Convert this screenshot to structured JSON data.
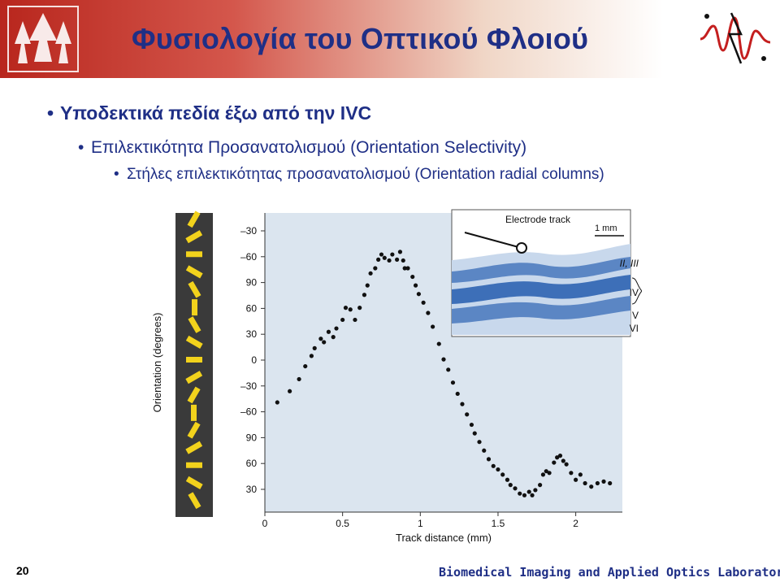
{
  "header": {
    "title": "Φυσιολογία του Οπτικού Φλοιού"
  },
  "bullets": {
    "level1": "Υποδεκτικά πεδία έξω από την IVC",
    "level2": "Επιλεκτικότητα Προσανατολισμού (Orientation Selectivity)",
    "level3": "Στήλες επιλεκτικότητας προσανατολισμού (Orientation radial columns)"
  },
  "chart_data": {
    "type": "scatter",
    "xlabel": "Track distance (mm)",
    "ylabel": "Orientation (degrees)",
    "x_ticks": [
      "0",
      "0.5",
      "1",
      "1.5",
      "2"
    ],
    "y_ticks": [
      "–30",
      "–60",
      "90",
      "60",
      "30",
      "0",
      "–30",
      "–60",
      "90",
      "60",
      "30"
    ],
    "xlim": [
      0,
      2.3
    ],
    "inset": {
      "title": "Electrode track",
      "scale_label": "1 mm",
      "layer_labels": [
        "II, III",
        "IV",
        "V",
        "VI"
      ]
    },
    "points": [
      {
        "x": 0.08,
        "y": 180
      },
      {
        "x": 0.16,
        "y": 193
      },
      {
        "x": 0.22,
        "y": 207
      },
      {
        "x": 0.26,
        "y": 222
      },
      {
        "x": 0.3,
        "y": 234
      },
      {
        "x": 0.32,
        "y": 243
      },
      {
        "x": 0.36,
        "y": 254
      },
      {
        "x": 0.38,
        "y": 250
      },
      {
        "x": 0.41,
        "y": 262
      },
      {
        "x": 0.44,
        "y": 256
      },
      {
        "x": 0.46,
        "y": 266
      },
      {
        "x": 0.5,
        "y": 276
      },
      {
        "x": 0.52,
        "y": 290
      },
      {
        "x": 0.55,
        "y": 288
      },
      {
        "x": 0.58,
        "y": 276
      },
      {
        "x": 0.61,
        "y": 290
      },
      {
        "x": 0.64,
        "y": 305
      },
      {
        "x": 0.66,
        "y": 316
      },
      {
        "x": 0.68,
        "y": 330
      },
      {
        "x": 0.71,
        "y": 336
      },
      {
        "x": 0.73,
        "y": 346
      },
      {
        "x": 0.75,
        "y": 352
      },
      {
        "x": 0.77,
        "y": 348
      },
      {
        "x": 0.8,
        "y": 345
      },
      {
        "x": 0.82,
        "y": 352
      },
      {
        "x": 0.85,
        "y": 346
      },
      {
        "x": 0.87,
        "y": 355
      },
      {
        "x": 0.89,
        "y": 345
      },
      {
        "x": 0.9,
        "y": 336
      },
      {
        "x": 0.92,
        "y": 336
      },
      {
        "x": 0.95,
        "y": 326
      },
      {
        "x": 0.97,
        "y": 316
      },
      {
        "x": 0.99,
        "y": 306
      },
      {
        "x": 1.02,
        "y": 296
      },
      {
        "x": 1.05,
        "y": 284
      },
      {
        "x": 1.08,
        "y": 268
      },
      {
        "x": 1.12,
        "y": 248
      },
      {
        "x": 1.15,
        "y": 230
      },
      {
        "x": 1.18,
        "y": 218
      },
      {
        "x": 1.21,
        "y": 203
      },
      {
        "x": 1.24,
        "y": 190
      },
      {
        "x": 1.27,
        "y": 178
      },
      {
        "x": 1.3,
        "y": 166
      },
      {
        "x": 1.33,
        "y": 154
      },
      {
        "x": 1.35,
        "y": 144
      },
      {
        "x": 1.38,
        "y": 134
      },
      {
        "x": 1.41,
        "y": 124
      },
      {
        "x": 1.44,
        "y": 114
      },
      {
        "x": 1.47,
        "y": 106
      },
      {
        "x": 1.5,
        "y": 102
      },
      {
        "x": 1.53,
        "y": 96
      },
      {
        "x": 1.56,
        "y": 90
      },
      {
        "x": 1.58,
        "y": 84
      },
      {
        "x": 1.61,
        "y": 80
      },
      {
        "x": 1.64,
        "y": 74
      },
      {
        "x": 1.67,
        "y": 72
      },
      {
        "x": 1.7,
        "y": 76
      },
      {
        "x": 1.72,
        "y": 72
      },
      {
        "x": 1.74,
        "y": 78
      },
      {
        "x": 1.77,
        "y": 84
      },
      {
        "x": 1.79,
        "y": 96
      },
      {
        "x": 1.81,
        "y": 100
      },
      {
        "x": 1.83,
        "y": 98
      },
      {
        "x": 1.86,
        "y": 110
      },
      {
        "x": 1.88,
        "y": 116
      },
      {
        "x": 1.9,
        "y": 118
      },
      {
        "x": 1.92,
        "y": 112
      },
      {
        "x": 1.94,
        "y": 108
      },
      {
        "x": 1.97,
        "y": 98
      },
      {
        "x": 2.0,
        "y": 90
      },
      {
        "x": 2.03,
        "y": 96
      },
      {
        "x": 2.06,
        "y": 86
      },
      {
        "x": 2.1,
        "y": 82
      },
      {
        "x": 2.14,
        "y": 86
      },
      {
        "x": 2.18,
        "y": 88
      },
      {
        "x": 2.22,
        "y": 86
      }
    ]
  },
  "footer": {
    "slide_number": "20",
    "lab_name": "Biomedical Imaging and Applied Optics Laboratory"
  }
}
